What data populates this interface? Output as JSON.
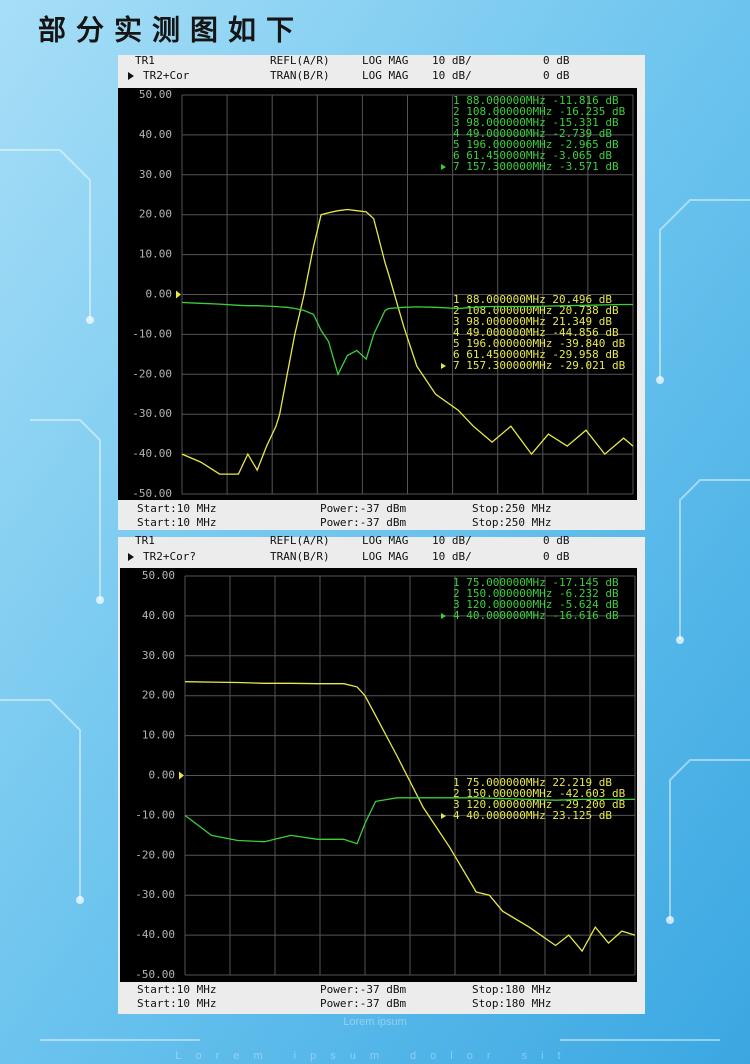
{
  "title": "部分实测图如下",
  "background_text": [
    "Lorem ipsum",
    "Lorem ipsum dolor sit"
  ],
  "chart_data": [
    {
      "type": "line",
      "header": [
        [
          "TR1",
          "REFL(A/R)",
          "LOG MAG",
          "10 dB/",
          "0 dB"
        ],
        [
          "TR2+Cor",
          "TRAN(B/R)",
          "LOG MAG",
          "10 dB/",
          "0 dB"
        ]
      ],
      "footer": [
        [
          "Start:10 MHz",
          "Power:-37 dBm",
          "Stop:250 MHz"
        ],
        [
          "Start:10 MHz",
          "Power:-37 dBm",
          "Stop:250 MHz"
        ]
      ],
      "xlim": [
        10,
        250
      ],
      "ylim": [
        -50,
        50
      ],
      "yticks": [
        {
          "value": 50,
          "label": "50.00"
        },
        {
          "value": 40,
          "label": "40.00"
        },
        {
          "value": 30,
          "label": "30.00"
        },
        {
          "value": 20,
          "label": "20.00"
        },
        {
          "value": 10,
          "label": "10.00"
        },
        {
          "value": 0,
          "label": "0.00"
        },
        {
          "value": -10,
          "label": "-10.00"
        },
        {
          "value": -20,
          "label": "-20.00"
        },
        {
          "value": -30,
          "label": "-30.00"
        },
        {
          "value": -40,
          "label": "-40.00"
        },
        {
          "value": -50,
          "label": "-50.00"
        }
      ],
      "grid": true,
      "x": [
        10,
        20,
        30,
        40,
        45,
        50,
        55,
        60,
        62,
        66,
        70,
        75,
        80,
        84,
        88,
        93,
        98,
        103,
        108,
        112,
        118,
        120,
        128,
        135,
        145,
        157,
        165,
        175,
        185,
        196,
        205,
        215,
        225,
        235,
        245,
        250
      ],
      "series": [
        {
          "color": "#e8e84a",
          "values": [
            -40,
            -42,
            -45,
            -45,
            -40,
            -44,
            -38,
            -33,
            -30,
            -20,
            -10,
            0,
            12,
            20,
            20.5,
            21,
            21.3,
            21,
            20.7,
            19,
            8,
            5,
            -8,
            -18,
            -25,
            -29,
            -33,
            -37,
            -33,
            -40,
            -35,
            -38,
            -34,
            -40,
            -36,
            -38
          ],
          "marker_rows": [
            "1 88.000000MHz 20.496 dB",
            "2 108.000000MHz 20.738 dB",
            "3 98.000000MHz 21.349 dB",
            "4 49.000000MHz -44.856 dB",
            "5 196.000000MHz -39.840 dB",
            "6 61.450000MHz -29.958 dB",
            "7 157.300000MHz -29.021 dB"
          ]
        },
        {
          "color": "#3ccf3c",
          "values": [
            -2,
            -2.2,
            -2.4,
            -2.7,
            -2.8,
            -2.8,
            -2.9,
            -3,
            -3.1,
            -3.2,
            -3.5,
            -4,
            -5,
            -9,
            -11.8,
            -20,
            -15.3,
            -14,
            -16.2,
            -10,
            -4,
            -3.5,
            -3.2,
            -3.1,
            -3.2,
            -3.5,
            -3.2,
            -3,
            -3,
            -3,
            -2.9,
            -2.8,
            -2.7,
            -2.6,
            -2.5,
            -2.5
          ],
          "marker_rows": [
            "1 88.000000MHz -11.816 dB",
            "2 108.000000MHz -16.235 dB",
            "3 98.000000MHz -15.331 dB",
            "4 49.000000MHz -2.739 dB",
            "5 196.000000MHz -2.965 dB",
            "6 61.450000MHz -3.065 dB",
            "7 157.300000MHz -3.571 dB"
          ]
        }
      ]
    },
    {
      "type": "line",
      "header": [
        [
          "TR1",
          "REFL(A/R)",
          "LOG MAG",
          "10 dB/",
          "0 dB"
        ],
        [
          "TR2+Cor?",
          "TRAN(B/R)",
          "LOG MAG",
          "10 dB/",
          "0 dB"
        ]
      ],
      "footer": [
        [
          "Start:10 MHz",
          "Power:-37 dBm",
          "Stop:180 MHz"
        ],
        [
          "Start:10 MHz",
          "Power:-37 dBm",
          "Stop:180 MHz"
        ]
      ],
      "xlim": [
        10,
        180
      ],
      "ylim": [
        -50,
        50
      ],
      "yticks": [
        {
          "value": 50,
          "label": "50.00"
        },
        {
          "value": 40,
          "label": "40.00"
        },
        {
          "value": 30,
          "label": "30.00"
        },
        {
          "value": 20,
          "label": "20.00"
        },
        {
          "value": 10,
          "label": "10.00"
        },
        {
          "value": 0,
          "label": "0.00"
        },
        {
          "value": -10,
          "label": "-10.00"
        },
        {
          "value": -20,
          "label": "-20.00"
        },
        {
          "value": -30,
          "label": "-30.00"
        },
        {
          "value": -40,
          "label": "-40.00"
        },
        {
          "value": -50,
          "label": "-50.00"
        }
      ],
      "grid": true,
      "x": [
        10,
        20,
        30,
        40,
        50,
        60,
        70,
        75,
        78,
        82,
        90,
        100,
        110,
        120,
        125,
        130,
        140,
        150,
        155,
        160,
        165,
        170,
        175,
        180
      ],
      "series": [
        {
          "color": "#e8e84a",
          "values": [
            23.5,
            23.4,
            23.3,
            23.1,
            23.1,
            23,
            23,
            22.2,
            20,
            15,
            5,
            -8,
            -18,
            -29.2,
            -30,
            -34,
            -38,
            -42.6,
            -40,
            -44,
            -38,
            -42,
            -39,
            -40
          ],
          "marker_rows": [
            "1 75.000000MHz 22.219 dB",
            "2 150.000000MHz -42.603 dB",
            "3 120.000000MHz -29.200 dB",
            "4 40.000000MHz 23.125 dB"
          ]
        },
        {
          "color": "#3ccf3c",
          "values": [
            -10,
            -15,
            -16.3,
            -16.6,
            -15,
            -16,
            -16,
            -17.1,
            -12,
            -6.5,
            -5.6,
            -5.6,
            -5.6,
            -5.6,
            -5.7,
            -5.8,
            -6,
            -6.2,
            -6.1,
            -6,
            -6,
            -6,
            -6,
            -6
          ],
          "marker_rows": [
            "1 75.000000MHz -17.145 dB",
            "2 150.000000MHz -6.232 dB",
            "3 120.000000MHz -5.624 dB",
            "4 40.000000MHz -16.616 dB"
          ]
        }
      ]
    }
  ]
}
